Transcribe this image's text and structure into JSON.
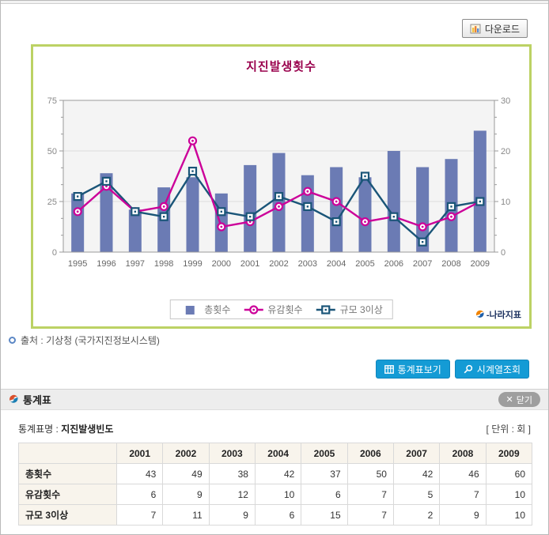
{
  "toolbar": {
    "download_label": "다운로드"
  },
  "brand": {
    "text": "-나라지표"
  },
  "source": {
    "text": "출처 : 기상청 (국가지진정보시스템)"
  },
  "actions": {
    "view_table": "통계표보기",
    "time_series": "시계열조회"
  },
  "stats": {
    "title": "통계표",
    "close_label": "닫기",
    "close_glyph": "✕",
    "table_name_label": "통계표명 :",
    "table_name": "지진발생빈도",
    "unit": "[ 단위 : 회 ]",
    "table": {
      "corner": "",
      "col_headers": [
        "2001",
        "2002",
        "2003",
        "2004",
        "2005",
        "2006",
        "2007",
        "2008",
        "2009"
      ],
      "rows": [
        {
          "label": "총횟수",
          "values": [
            43,
            49,
            38,
            42,
            37,
            50,
            42,
            46,
            60
          ]
        },
        {
          "label": "유감횟수",
          "values": [
            6,
            9,
            12,
            10,
            6,
            7,
            5,
            7,
            10
          ]
        },
        {
          "label": "규모 3이상",
          "values": [
            7,
            11,
            9,
            6,
            15,
            7,
            2,
            9,
            10
          ]
        }
      ]
    }
  },
  "colors": {
    "bar": "#6b7bb4",
    "felt_line": "#cc0099",
    "mag3_line": "#1a5578",
    "panel_border": "#bcd264",
    "title": "#99004c",
    "action_button": "#149bd5",
    "plot_bg": "#f4f4f4",
    "grid": "#dddddd",
    "axis": "#9a9a9a"
  },
  "chart_data": {
    "type": "bar+line-combo",
    "title": "지진발생횟수",
    "categories": [
      "1995",
      "1996",
      "1997",
      "1998",
      "1999",
      "2000",
      "2001",
      "2002",
      "2003",
      "2004",
      "2005",
      "2006",
      "2007",
      "2008",
      "2009"
    ],
    "series": [
      {
        "name": "총횟수",
        "type": "bar",
        "axis": "left",
        "marker": "square-fill",
        "color": "#6b7bb4",
        "values": [
          29,
          39,
          21,
          32,
          37,
          29,
          43,
          49,
          38,
          42,
          37,
          50,
          42,
          46,
          60
        ]
      },
      {
        "name": "유감횟수",
        "type": "line",
        "axis": "right",
        "marker": "circle",
        "color": "#cc0099",
        "values": [
          8,
          13,
          8,
          9,
          22,
          5,
          6,
          9,
          12,
          10,
          6,
          7,
          5,
          7,
          10
        ]
      },
      {
        "name": "규모 3이상",
        "type": "line",
        "axis": "right",
        "marker": "square",
        "color": "#1a5578",
        "values": [
          11,
          14,
          8,
          7,
          16,
          8,
          7,
          11,
          9,
          6,
          15,
          7,
          2,
          9,
          10
        ]
      }
    ],
    "left_axis": {
      "min": 0,
      "max": 75,
      "ticks": [
        0,
        25,
        50,
        75
      ]
    },
    "right_axis": {
      "min": 0,
      "max": 30,
      "ticks": [
        0,
        10,
        20,
        30
      ]
    },
    "grid": true,
    "legend_position": "bottom-center"
  }
}
